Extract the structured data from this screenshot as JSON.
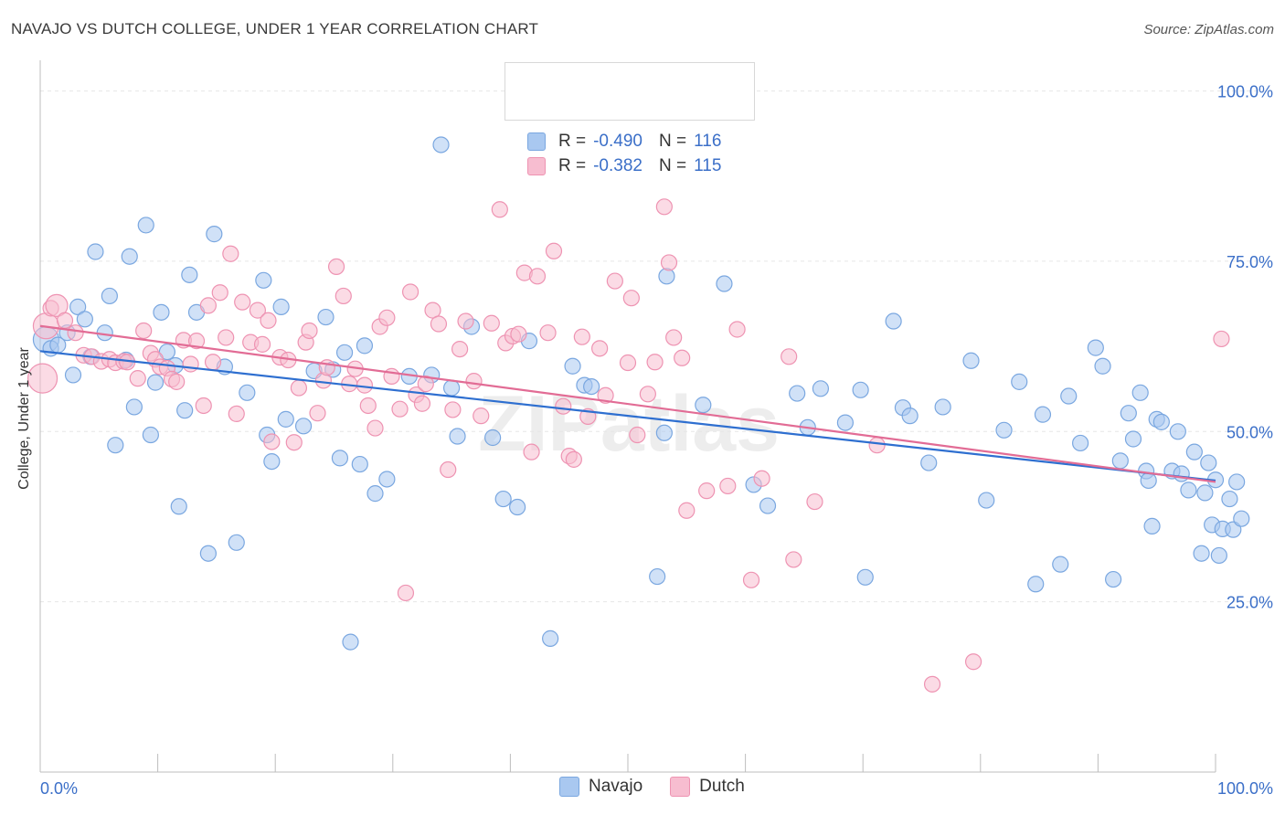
{
  "title": "NAVAJO VS DUTCH COLLEGE, UNDER 1 YEAR CORRELATION CHART",
  "source": "Source: ZipAtlas.com",
  "watermark": "ZIPatlas",
  "legend": {
    "navajo": {
      "r_label": "R =",
      "r_value": "-0.490",
      "n_label": "N =",
      "n_value": "116"
    },
    "dutch": {
      "r_label": "R =",
      "r_value": "-0.382",
      "n_label": "N =",
      "n_value": "115"
    }
  },
  "colors": {
    "navajo_fill": "#a9c8f0",
    "navajo_stroke": "#7aa7e0",
    "navajo_line": "#2e6fd0",
    "dutch_fill": "#f7bdd0",
    "dutch_stroke": "#ee93b2",
    "dutch_line": "#e26c95",
    "tick_text": "#3b6fc8",
    "grid": "#e6e6e6"
  },
  "chart_data": {
    "type": "scatter",
    "title": "NAVAJO VS DUTCH COLLEGE, UNDER 1 YEAR CORRELATION CHART",
    "xlabel": "",
    "ylabel": "College, Under 1 year",
    "xlim": [
      0,
      100
    ],
    "ylim": [
      0,
      103.7
    ],
    "x_tick_labels": [
      "0.0%",
      "100.0%"
    ],
    "y_ticks": [
      25,
      50,
      75,
      100
    ],
    "y_tick_labels": [
      "25.0%",
      "50.0%",
      "75.0%",
      "100.0%"
    ],
    "legend_position": "bottom-center",
    "series": [
      {
        "name": "Navajo",
        "trend": {
          "x": [
            0,
            100
          ],
          "y": [
            61.8,
            42.8
          ]
        },
        "points": [
          {
            "x": 0.5,
            "y": 63.5,
            "s": 14
          },
          {
            "x": 0.9,
            "y": 62.2
          },
          {
            "x": 1.5,
            "y": 62.7
          },
          {
            "x": 2.3,
            "y": 64.5
          },
          {
            "x": 2.8,
            "y": 58.3
          },
          {
            "x": 3.2,
            "y": 68.3
          },
          {
            "x": 3.8,
            "y": 66.5
          },
          {
            "x": 4.3,
            "y": 61.0
          },
          {
            "x": 4.7,
            "y": 76.4
          },
          {
            "x": 5.5,
            "y": 64.5
          },
          {
            "x": 5.9,
            "y": 69.9
          },
          {
            "x": 6.4,
            "y": 48.0
          },
          {
            "x": 7.3,
            "y": 60.5
          },
          {
            "x": 7.6,
            "y": 75.7
          },
          {
            "x": 8.0,
            "y": 53.6
          },
          {
            "x": 9.0,
            "y": 80.3
          },
          {
            "x": 9.4,
            "y": 49.5
          },
          {
            "x": 9.8,
            "y": 57.2
          },
          {
            "x": 10.3,
            "y": 67.5
          },
          {
            "x": 10.8,
            "y": 61.7
          },
          {
            "x": 11.5,
            "y": 59.7
          },
          {
            "x": 11.8,
            "y": 39.0
          },
          {
            "x": 12.3,
            "y": 53.1
          },
          {
            "x": 12.7,
            "y": 73.0
          },
          {
            "x": 13.3,
            "y": 67.5
          },
          {
            "x": 14.3,
            "y": 32.1
          },
          {
            "x": 14.8,
            "y": 79.0
          },
          {
            "x": 15.7,
            "y": 59.5
          },
          {
            "x": 16.7,
            "y": 33.7
          },
          {
            "x": 17.6,
            "y": 55.7
          },
          {
            "x": 19.0,
            "y": 72.2
          },
          {
            "x": 19.3,
            "y": 49.5
          },
          {
            "x": 19.7,
            "y": 45.6
          },
          {
            "x": 20.5,
            "y": 68.3
          },
          {
            "x": 20.9,
            "y": 51.8
          },
          {
            "x": 22.4,
            "y": 50.8
          },
          {
            "x": 23.3,
            "y": 58.9
          },
          {
            "x": 24.3,
            "y": 66.8
          },
          {
            "x": 24.9,
            "y": 59.1
          },
          {
            "x": 25.5,
            "y": 46.1
          },
          {
            "x": 25.9,
            "y": 61.6
          },
          {
            "x": 26.4,
            "y": 19.1
          },
          {
            "x": 27.2,
            "y": 45.2
          },
          {
            "x": 27.6,
            "y": 62.6
          },
          {
            "x": 28.5,
            "y": 40.9
          },
          {
            "x": 29.5,
            "y": 43.0
          },
          {
            "x": 31.4,
            "y": 58.1
          },
          {
            "x": 33.3,
            "y": 58.3
          },
          {
            "x": 34.1,
            "y": 92.1
          },
          {
            "x": 35.0,
            "y": 56.4
          },
          {
            "x": 35.5,
            "y": 49.3
          },
          {
            "x": 36.7,
            "y": 65.4
          },
          {
            "x": 38.5,
            "y": 49.1
          },
          {
            "x": 39.4,
            "y": 40.1
          },
          {
            "x": 40.6,
            "y": 38.9
          },
          {
            "x": 41.6,
            "y": 63.3
          },
          {
            "x": 43.4,
            "y": 19.6
          },
          {
            "x": 45.3,
            "y": 59.6
          },
          {
            "x": 46.3,
            "y": 56.8
          },
          {
            "x": 46.9,
            "y": 56.6
          },
          {
            "x": 52.5,
            "y": 28.7
          },
          {
            "x": 53.1,
            "y": 49.8
          },
          {
            "x": 53.3,
            "y": 72.8
          },
          {
            "x": 56.4,
            "y": 53.9
          },
          {
            "x": 58.2,
            "y": 71.7
          },
          {
            "x": 60.7,
            "y": 42.2
          },
          {
            "x": 61.9,
            "y": 39.1
          },
          {
            "x": 64.4,
            "y": 55.6
          },
          {
            "x": 65.3,
            "y": 50.6
          },
          {
            "x": 66.4,
            "y": 56.3
          },
          {
            "x": 68.5,
            "y": 51.3
          },
          {
            "x": 69.8,
            "y": 56.1
          },
          {
            "x": 70.2,
            "y": 28.6
          },
          {
            "x": 72.6,
            "y": 66.2
          },
          {
            "x": 73.4,
            "y": 53.5
          },
          {
            "x": 74.0,
            "y": 52.3
          },
          {
            "x": 75.6,
            "y": 45.4
          },
          {
            "x": 76.8,
            "y": 53.6
          },
          {
            "x": 79.2,
            "y": 60.4
          },
          {
            "x": 80.5,
            "y": 39.9
          },
          {
            "x": 82.0,
            "y": 50.2
          },
          {
            "x": 83.3,
            "y": 57.3
          },
          {
            "x": 84.7,
            "y": 27.6
          },
          {
            "x": 85.3,
            "y": 52.5
          },
          {
            "x": 86.8,
            "y": 30.5
          },
          {
            "x": 87.5,
            "y": 55.2
          },
          {
            "x": 88.5,
            "y": 48.3
          },
          {
            "x": 89.8,
            "y": 62.3
          },
          {
            "x": 90.4,
            "y": 59.6
          },
          {
            "x": 91.3,
            "y": 28.3
          },
          {
            "x": 91.9,
            "y": 45.7
          },
          {
            "x": 92.6,
            "y": 52.7
          },
          {
            "x": 93.0,
            "y": 48.9
          },
          {
            "x": 93.6,
            "y": 55.7
          },
          {
            "x": 94.1,
            "y": 44.2
          },
          {
            "x": 94.3,
            "y": 42.8
          },
          {
            "x": 94.6,
            "y": 36.1
          },
          {
            "x": 95.0,
            "y": 51.8
          },
          {
            "x": 95.4,
            "y": 51.4
          },
          {
            "x": 96.3,
            "y": 44.2
          },
          {
            "x": 96.8,
            "y": 50.0
          },
          {
            "x": 97.1,
            "y": 43.8
          },
          {
            "x": 97.7,
            "y": 41.4
          },
          {
            "x": 98.2,
            "y": 47.0
          },
          {
            "x": 98.8,
            "y": 32.1
          },
          {
            "x": 99.1,
            "y": 41.0
          },
          {
            "x": 99.4,
            "y": 45.4
          },
          {
            "x": 99.7,
            "y": 36.3
          },
          {
            "x": 100.0,
            "y": 42.9
          },
          {
            "x": 100.3,
            "y": 31.8
          },
          {
            "x": 100.6,
            "y": 35.7
          },
          {
            "x": 101.2,
            "y": 40.1
          },
          {
            "x": 101.5,
            "y": 35.6
          },
          {
            "x": 101.8,
            "y": 42.6
          },
          {
            "x": 102.2,
            "y": 37.2
          }
        ]
      },
      {
        "name": "Dutch",
        "trend": {
          "x": [
            0,
            100
          ],
          "y": [
            65.5,
            42.6
          ]
        },
        "points": [
          {
            "x": 0.2,
            "y": 57.8,
            "s": 16
          },
          {
            "x": 0.5,
            "y": 65.5,
            "s": 14
          },
          {
            "x": 0.9,
            "y": 68.1
          },
          {
            "x": 1.4,
            "y": 68.5,
            "s": 12
          },
          {
            "x": 2.1,
            "y": 66.3
          },
          {
            "x": 3.0,
            "y": 64.5
          },
          {
            "x": 3.7,
            "y": 61.2
          },
          {
            "x": 4.4,
            "y": 61.0
          },
          {
            "x": 5.2,
            "y": 60.3
          },
          {
            "x": 5.9,
            "y": 60.6
          },
          {
            "x": 6.4,
            "y": 60.1
          },
          {
            "x": 7.1,
            "y": 60.3
          },
          {
            "x": 7.4,
            "y": 60.2
          },
          {
            "x": 8.3,
            "y": 57.8
          },
          {
            "x": 8.8,
            "y": 64.8
          },
          {
            "x": 9.4,
            "y": 61.5
          },
          {
            "x": 9.8,
            "y": 60.6
          },
          {
            "x": 10.2,
            "y": 59.5
          },
          {
            "x": 10.8,
            "y": 59.3
          },
          {
            "x": 11.2,
            "y": 57.7
          },
          {
            "x": 11.6,
            "y": 57.3
          },
          {
            "x": 12.2,
            "y": 63.4
          },
          {
            "x": 12.8,
            "y": 59.9
          },
          {
            "x": 13.3,
            "y": 63.3
          },
          {
            "x": 13.9,
            "y": 53.8
          },
          {
            "x": 14.3,
            "y": 68.5
          },
          {
            "x": 14.7,
            "y": 60.2
          },
          {
            "x": 15.3,
            "y": 70.4
          },
          {
            "x": 15.8,
            "y": 63.8
          },
          {
            "x": 16.2,
            "y": 76.1
          },
          {
            "x": 16.7,
            "y": 52.6
          },
          {
            "x": 17.2,
            "y": 69.0
          },
          {
            "x": 17.9,
            "y": 63.1
          },
          {
            "x": 18.5,
            "y": 67.8
          },
          {
            "x": 18.9,
            "y": 62.8
          },
          {
            "x": 19.4,
            "y": 66.3
          },
          {
            "x": 19.7,
            "y": 48.5
          },
          {
            "x": 20.4,
            "y": 60.9
          },
          {
            "x": 21.1,
            "y": 60.5
          },
          {
            "x": 21.6,
            "y": 48.4
          },
          {
            "x": 22.0,
            "y": 56.4
          },
          {
            "x": 22.6,
            "y": 63.1
          },
          {
            "x": 22.9,
            "y": 64.8
          },
          {
            "x": 23.6,
            "y": 52.7
          },
          {
            "x": 24.1,
            "y": 57.5
          },
          {
            "x": 24.4,
            "y": 59.4
          },
          {
            "x": 25.2,
            "y": 74.2
          },
          {
            "x": 25.8,
            "y": 69.9
          },
          {
            "x": 26.3,
            "y": 57.0
          },
          {
            "x": 26.8,
            "y": 59.2
          },
          {
            "x": 27.6,
            "y": 56.8
          },
          {
            "x": 27.9,
            "y": 53.8
          },
          {
            "x": 28.5,
            "y": 50.5
          },
          {
            "x": 28.9,
            "y": 65.4
          },
          {
            "x": 29.5,
            "y": 66.7
          },
          {
            "x": 29.9,
            "y": 58.1
          },
          {
            "x": 30.6,
            "y": 53.3
          },
          {
            "x": 31.1,
            "y": 26.3
          },
          {
            "x": 31.5,
            "y": 70.5
          },
          {
            "x": 32.0,
            "y": 55.4
          },
          {
            "x": 32.5,
            "y": 54.1
          },
          {
            "x": 32.8,
            "y": 57.0
          },
          {
            "x": 33.4,
            "y": 67.8
          },
          {
            "x": 33.9,
            "y": 65.8
          },
          {
            "x": 34.7,
            "y": 44.4
          },
          {
            "x": 35.1,
            "y": 53.2
          },
          {
            "x": 35.7,
            "y": 62.1
          },
          {
            "x": 36.2,
            "y": 66.2
          },
          {
            "x": 36.9,
            "y": 57.4
          },
          {
            "x": 37.5,
            "y": 52.3
          },
          {
            "x": 38.4,
            "y": 65.9
          },
          {
            "x": 39.1,
            "y": 82.6
          },
          {
            "x": 39.6,
            "y": 63.0
          },
          {
            "x": 40.2,
            "y": 64.0
          },
          {
            "x": 40.7,
            "y": 64.3
          },
          {
            "x": 41.2,
            "y": 73.3
          },
          {
            "x": 41.8,
            "y": 47.0
          },
          {
            "x": 42.3,
            "y": 72.8
          },
          {
            "x": 43.2,
            "y": 64.5
          },
          {
            "x": 43.7,
            "y": 76.5
          },
          {
            "x": 44.5,
            "y": 53.7
          },
          {
            "x": 45.0,
            "y": 46.4
          },
          {
            "x": 45.4,
            "y": 45.9
          },
          {
            "x": 46.1,
            "y": 63.9
          },
          {
            "x": 46.6,
            "y": 52.2
          },
          {
            "x": 47.6,
            "y": 62.2
          },
          {
            "x": 48.1,
            "y": 55.3
          },
          {
            "x": 48.9,
            "y": 72.1
          },
          {
            "x": 50.0,
            "y": 60.1
          },
          {
            "x": 50.3,
            "y": 69.6
          },
          {
            "x": 50.8,
            "y": 49.5
          },
          {
            "x": 51.7,
            "y": 55.5
          },
          {
            "x": 52.3,
            "y": 60.2
          },
          {
            "x": 53.1,
            "y": 83.0
          },
          {
            "x": 53.5,
            "y": 74.8
          },
          {
            "x": 53.9,
            "y": 63.8
          },
          {
            "x": 54.6,
            "y": 60.8
          },
          {
            "x": 55.0,
            "y": 38.4
          },
          {
            "x": 56.7,
            "y": 41.3
          },
          {
            "x": 58.5,
            "y": 42.0
          },
          {
            "x": 59.3,
            "y": 65.0
          },
          {
            "x": 60.5,
            "y": 28.2
          },
          {
            "x": 61.4,
            "y": 43.1
          },
          {
            "x": 63.7,
            "y": 61.0
          },
          {
            "x": 64.1,
            "y": 31.2
          },
          {
            "x": 65.9,
            "y": 39.7
          },
          {
            "x": 71.2,
            "y": 48.0
          },
          {
            "x": 75.9,
            "y": 12.9
          },
          {
            "x": 79.4,
            "y": 16.2
          },
          {
            "x": 100.5,
            "y": 63.6
          }
        ]
      }
    ]
  }
}
